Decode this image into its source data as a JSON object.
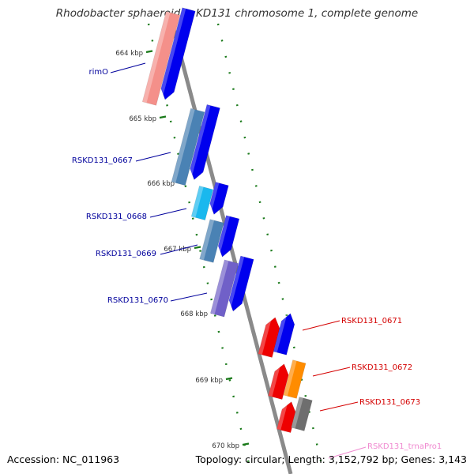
{
  "title": "Rhodobacter sphaeroides KD131 chromosome 1, complete genome",
  "accession_label": "Accession: NC_011963",
  "summary_label": "Topology: circular; Length: 3,152,792 bp; Genes: 3,143",
  "colors": {
    "backbone": "#8a8a8a",
    "forward_arrow": "#0000ee",
    "left_label": "#00009c",
    "right_label": "#d40000",
    "trna_label": "#f08ad0",
    "tick_label": "#333333",
    "dots": "#1a7a1a"
  },
  "ticks": [
    {
      "label": "664 kbp"
    },
    {
      "label": "665 kbp"
    },
    {
      "label": "666 kbp"
    },
    {
      "label": "667 kbp"
    },
    {
      "label": "668 kbp"
    },
    {
      "label": "669 kbp"
    },
    {
      "label": "670 kbp"
    }
  ],
  "left_genes": [
    {
      "name": "rimO",
      "color": "#f4908a"
    },
    {
      "name": "RSKD131_0667",
      "color": "#4a82b4"
    },
    {
      "name": "RSKD131_0668",
      "color": "#1ab8ee"
    },
    {
      "name": "RSKD131_0669",
      "color": "#4a82b4"
    },
    {
      "name": "RSKD131_0670",
      "color": "#7060c8"
    }
  ],
  "right_genes": [
    {
      "name": "RSKD131_0671",
      "color": "#0000ee"
    },
    {
      "name": "RSKD131_0672",
      "color": "#ff8c00"
    },
    {
      "name": "RSKD131_0673",
      "color": "#6e6e6e"
    },
    {
      "name": "RSKD131_trnaPro1",
      "color": "#f08ad0"
    }
  ]
}
